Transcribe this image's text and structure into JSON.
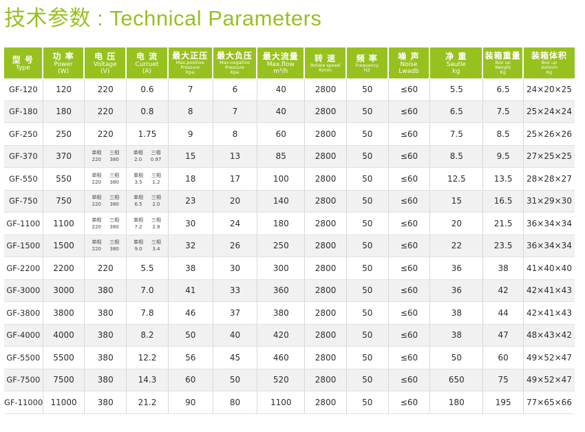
{
  "title": {
    "cn": "技术参数",
    "sep": " : ",
    "en": "Technical Parameters"
  },
  "headers": [
    {
      "cn": "型 号",
      "en": [
        "Type"
      ],
      "small": false
    },
    {
      "cn": "功 率",
      "en": [
        "Power",
        "(W)"
      ],
      "small": false
    },
    {
      "cn": "电 压",
      "en": [
        "Voltage",
        "(V)"
      ],
      "small": false
    },
    {
      "cn": "电 流",
      "en": [
        "Curruet",
        "(A)"
      ],
      "small": false
    },
    {
      "cn": "最大正压",
      "en": [
        "Max.positive",
        "Pressure",
        "Kpa"
      ],
      "small": true
    },
    {
      "cn": "最大负压",
      "en": [
        "Max.negative",
        "Pressure",
        "Kpa"
      ],
      "small": true
    },
    {
      "cn": "最大流量",
      "en": [
        "Max.flow",
        "m³/h"
      ],
      "small": false
    },
    {
      "cn": "转 速",
      "en": [
        "Rotate speed",
        "R/min"
      ],
      "small": true
    },
    {
      "cn": "频 率",
      "en": [
        "Frequency",
        "HZ"
      ],
      "small": true
    },
    {
      "cn": "噪 声",
      "en": [
        "Noise",
        "Lwadb"
      ],
      "small": false
    },
    {
      "cn": "净 重",
      "en": [
        "Sautle",
        "kg"
      ],
      "small": false
    },
    {
      "cn": "装箱重量",
      "en": [
        "Box up",
        "Werght",
        "Kg"
      ],
      "small": true
    },
    {
      "cn": "装箱体积",
      "en": [
        "Box up",
        "Volimm",
        "Kg"
      ],
      "small": true
    }
  ],
  "split_labels": {
    "single": "单相",
    "three": "三相"
  },
  "rows": [
    {
      "type": "GF-120",
      "power": "120",
      "voltage": "220",
      "current": "0.6",
      "pos": "7",
      "neg": "6",
      "flow": "40",
      "speed": "2800",
      "freq": "50",
      "noise": "≤60",
      "net": "5.5",
      "box_w": "6.5",
      "box_v": "24×20×25"
    },
    {
      "type": "GF-180",
      "power": "180",
      "voltage": "220",
      "current": "0.8",
      "pos": "8",
      "neg": "7",
      "flow": "40",
      "speed": "2800",
      "freq": "50",
      "noise": "≤60",
      "net": "6.5",
      "box_w": "7.5",
      "box_v": "25×24×24"
    },
    {
      "type": "GF-250",
      "power": "250",
      "voltage": "220",
      "current": "1.75",
      "pos": "9",
      "neg": "8",
      "flow": "60",
      "speed": "2800",
      "freq": "50",
      "noise": "≤60",
      "net": "7.5",
      "box_w": "8.5",
      "box_v": "25×26×26"
    },
    {
      "type": "GF-370",
      "power": "370",
      "voltage_split": [
        "220",
        "380"
      ],
      "current_split": [
        "2.0",
        "0.97"
      ],
      "pos": "15",
      "neg": "13",
      "flow": "85",
      "speed": "2800",
      "freq": "50",
      "noise": "≤60",
      "net": "8.5",
      "box_w": "9.5",
      "box_v": "27×25×25"
    },
    {
      "type": "GF-550",
      "power": "550",
      "voltage_split": [
        "220",
        "380"
      ],
      "current_split": [
        "3.5",
        "1.2"
      ],
      "pos": "18",
      "neg": "17",
      "flow": "100",
      "speed": "2800",
      "freq": "50",
      "noise": "≤60",
      "net": "12.5",
      "box_w": "13.5",
      "box_v": "28×28×27"
    },
    {
      "type": "GF-750",
      "power": "750",
      "voltage_split": [
        "220",
        "380"
      ],
      "current_split": [
        "6.5",
        "2.0"
      ],
      "pos": "23",
      "neg": "20",
      "flow": "140",
      "speed": "2800",
      "freq": "50",
      "noise": "≤60",
      "net": "15",
      "box_w": "16.5",
      "box_v": "31×29×30"
    },
    {
      "type": "GF-1100",
      "power": "1100",
      "voltage_split": [
        "220",
        "380"
      ],
      "current_split": [
        "7.2",
        "2.8"
      ],
      "pos": "30",
      "neg": "24",
      "flow": "180",
      "speed": "2800",
      "freq": "50",
      "noise": "≤60",
      "net": "20",
      "box_w": "21.5",
      "box_v": "36×34×34"
    },
    {
      "type": "GF-1500",
      "power": "1500",
      "voltage_split": [
        "220",
        "380"
      ],
      "current_split": [
        "9.0",
        "3.4"
      ],
      "pos": "32",
      "neg": "26",
      "flow": "250",
      "speed": "2800",
      "freq": "50",
      "noise": "≤60",
      "net": "22",
      "box_w": "23.5",
      "box_v": "36×34×34"
    },
    {
      "type": "GF-2200",
      "power": "2200",
      "voltage": "220",
      "current": "5.5",
      "pos": "38",
      "neg": "30",
      "flow": "300",
      "speed": "2800",
      "freq": "50",
      "noise": "≤60",
      "net": "36",
      "box_w": "38",
      "box_v": "41×40×40"
    },
    {
      "type": "GF-3000",
      "power": "3000",
      "voltage": "380",
      "current": "7.0",
      "pos": "41",
      "neg": "33",
      "flow": "360",
      "speed": "2800",
      "freq": "50",
      "noise": "≤60",
      "net": "36",
      "box_w": "42",
      "box_v": "42×41×43"
    },
    {
      "type": "GF-3800",
      "power": "3800",
      "voltage": "380",
      "current": "7.8",
      "pos": "46",
      "neg": "37",
      "flow": "380",
      "speed": "2800",
      "freq": "50",
      "noise": "≤60",
      "net": "38",
      "box_w": "44",
      "box_v": "42×41×43"
    },
    {
      "type": "GF-4000",
      "power": "4000",
      "voltage": "380",
      "current": "8.2",
      "pos": "50",
      "neg": "40",
      "flow": "420",
      "speed": "2800",
      "freq": "50",
      "noise": "≤60",
      "net": "38",
      "box_w": "47",
      "box_v": "48×43×42"
    },
    {
      "type": "GF-5500",
      "power": "5500",
      "voltage": "380",
      "current": "12.2",
      "pos": "56",
      "neg": "45",
      "flow": "460",
      "speed": "2800",
      "freq": "50",
      "noise": "≤60",
      "net": "50",
      "box_w": "60",
      "box_v": "49×52×47"
    },
    {
      "type": "GF-7500",
      "power": "7500",
      "voltage": "380",
      "current": "14.3",
      "pos": "60",
      "neg": "50",
      "flow": "520",
      "speed": "2800",
      "freq": "50",
      "noise": "≤60",
      "net": "650",
      "box_w": "75",
      "box_v": "49×52×47"
    },
    {
      "type": "GF-11000",
      "power": "11000",
      "voltage": "380",
      "current": "21.2",
      "pos": "90",
      "neg": "80",
      "flow": "1100",
      "speed": "2800",
      "freq": "50",
      "noise": "≤60",
      "net": "180",
      "box_w": "195",
      "box_v": "77×65×66"
    }
  ],
  "colors": {
    "accent": "#97c11f",
    "stripe": "#f1f1f1"
  }
}
